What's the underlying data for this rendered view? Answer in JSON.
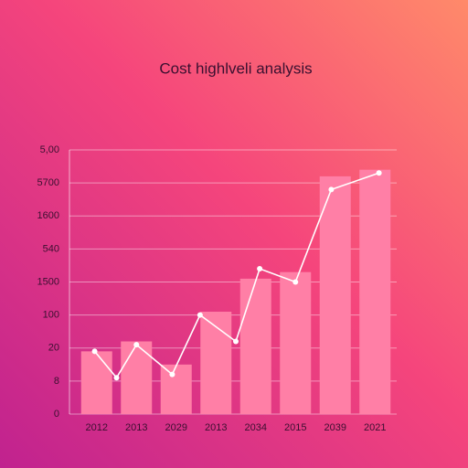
{
  "chart_data": {
    "type": "bar-line",
    "title": "Cost highlveli analysis",
    "categories": [
      "2012",
      "2013",
      "2029",
      "2013",
      "2034",
      "2015",
      "2039",
      "2021"
    ],
    "bars": {
      "values": [
        1.9,
        2.2,
        1.5,
        3.1,
        4.1,
        4.3,
        7.2,
        7.4
      ],
      "color": "#ff7fa6"
    },
    "line": {
      "x": [
        -0.05,
        0.5,
        1.0,
        1.9,
        2.6,
        3.5,
        4.1,
        5.0,
        5.9,
        7.1
      ],
      "values": [
        1.9,
        1.1,
        2.1,
        1.2,
        3.0,
        2.2,
        4.4,
        4.0,
        6.8,
        7.3
      ],
      "color": "#ffffff"
    },
    "ylim": [
      0,
      8
    ],
    "yticks": [
      0,
      {
        "value": 1,
        "label": "8"
      },
      {
        "value": 2,
        "label": "20"
      },
      {
        "value": 3,
        "label": "100"
      },
      {
        "value": 4,
        "label": "1500"
      },
      {
        "value": 5,
        "label": "540"
      },
      {
        "value": 6,
        "label": "1600"
      },
      {
        "value": 7,
        "label": "5700"
      },
      {
        "value": 8,
        "label": "5,00"
      }
    ],
    "grid": true
  }
}
